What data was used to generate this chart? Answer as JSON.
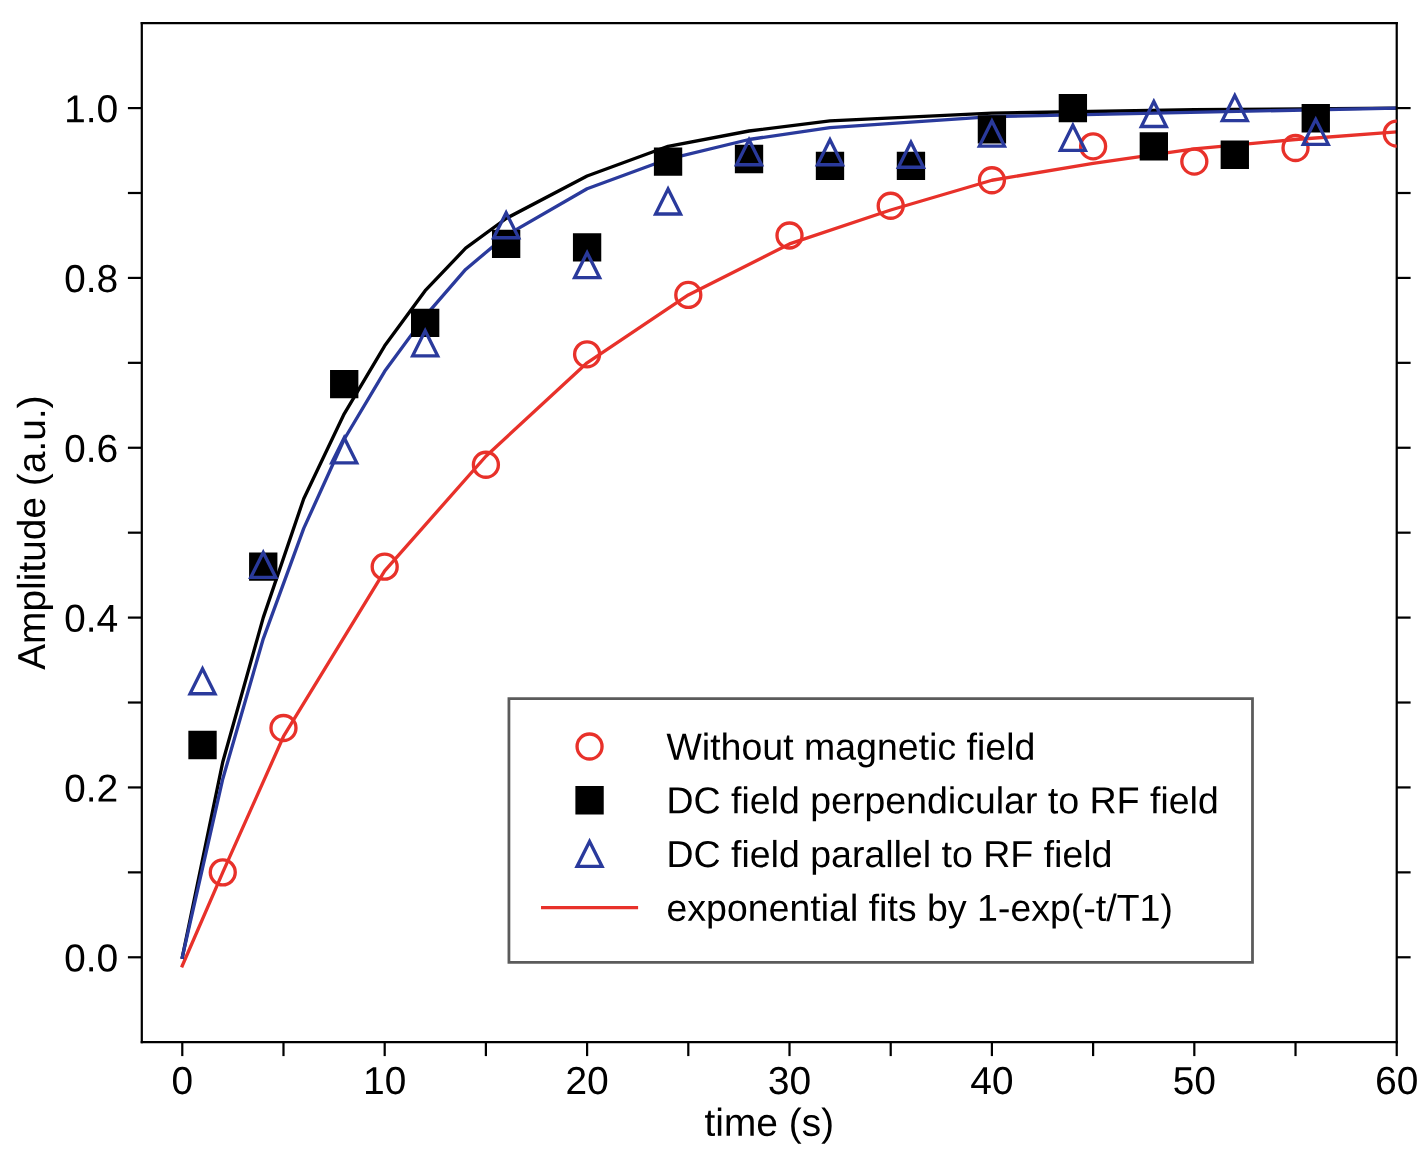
{
  "chart_data": {
    "type": "scatter",
    "xlabel": "time (s)",
    "ylabel": "Amplitude (a.u.)",
    "xlim": [
      -2,
      60
    ],
    "ylim": [
      -0.1,
      1.1
    ],
    "xticks": [
      0,
      {
        "value": 5,
        "label": null
      },
      10,
      {
        "value": 15,
        "label": null
      },
      20,
      {
        "value": 25,
        "label": null
      },
      30,
      {
        "value": 35,
        "label": null
      },
      40,
      {
        "value": 45,
        "label": null
      },
      50,
      {
        "value": 55,
        "label": null
      },
      60
    ],
    "yticks": [
      {
        "value": 0,
        "label": "0.0"
      },
      {
        "value": 0.1,
        "label": null
      },
      {
        "value": 0.2,
        "label": "0.2"
      },
      {
        "value": 0.3,
        "label": null
      },
      {
        "value": 0.4,
        "label": "0.4"
      },
      {
        "value": 0.5,
        "label": null
      },
      {
        "value": 0.6,
        "label": "0.6"
      },
      {
        "value": 0.7,
        "label": null
      },
      {
        "value": 0.8,
        "label": "0.8"
      },
      {
        "value": 0.9,
        "label": null
      },
      {
        "value": 1.0,
        "label": "1.0"
      }
    ],
    "grid": false,
    "legend": "bottom right",
    "series": [
      {
        "name": "Without magnetic field",
        "marker": "circle",
        "color": "#e8312a",
        "x": [
          2,
          5,
          10,
          15,
          20,
          25,
          30,
          35,
          40,
          45,
          50,
          55,
          60
        ],
        "values": [
          0.1,
          0.27,
          0.46,
          0.58,
          0.71,
          0.78,
          0.85,
          0.885,
          0.915,
          0.955,
          0.937,
          0.953,
          0.97
        ]
      },
      {
        "name": "DC field perpendicular to RF field",
        "marker": "square",
        "color": "#000000",
        "x": [
          1,
          4,
          8,
          12,
          16,
          20,
          24,
          28,
          32,
          36,
          40,
          44,
          48,
          52,
          56
        ],
        "values": [
          0.25,
          0.46,
          0.675,
          0.747,
          0.84,
          0.836,
          0.937,
          0.94,
          0.932,
          0.932,
          0.975,
          1.0,
          0.955,
          0.945,
          0.988
        ]
      },
      {
        "name": "DC field parallel to RF field",
        "marker": "triangle",
        "color": "#2a3a9c",
        "x": [
          1,
          4,
          8,
          12,
          16,
          20,
          24,
          28,
          32,
          36,
          40,
          44,
          48,
          52,
          56
        ],
        "values": [
          0.325,
          0.462,
          0.597,
          0.723,
          0.862,
          0.815,
          0.89,
          0.948,
          0.948,
          0.945,
          0.97,
          0.965,
          0.993,
          1.0,
          0.972
        ]
      },
      {
        "name": "exponential fits by 1-exp(-t/T1)",
        "type": "line",
        "color": "#e8312a",
        "x": [
          0,
          2,
          5,
          10,
          15,
          20,
          25,
          30,
          35,
          40,
          45,
          50,
          55,
          60
        ],
        "values": [
          -0.01,
          0.1,
          0.26,
          0.455,
          0.59,
          0.7,
          0.78,
          0.84,
          0.88,
          0.915,
          0.935,
          0.952,
          0.963,
          0.972
        ]
      },
      {
        "type": "line",
        "color": "#000000",
        "x": [
          0,
          2,
          4,
          6,
          8,
          10,
          12,
          14,
          16,
          20,
          24,
          28,
          32,
          40,
          50,
          60
        ],
        "values": [
          0,
          0.23,
          0.4,
          0.54,
          0.64,
          0.72,
          0.785,
          0.835,
          0.87,
          0.92,
          0.955,
          0.973,
          0.985,
          0.994,
          0.998,
          1.0
        ]
      },
      {
        "type": "line",
        "color": "#2a3a9c",
        "x": [
          0,
          2,
          4,
          6,
          8,
          10,
          12,
          14,
          16,
          20,
          24,
          28,
          32,
          40,
          60
        ],
        "values": [
          0,
          0.21,
          0.375,
          0.505,
          0.61,
          0.69,
          0.755,
          0.81,
          0.85,
          0.905,
          0.94,
          0.963,
          0.977,
          0.99,
          1.0
        ]
      }
    ]
  }
}
